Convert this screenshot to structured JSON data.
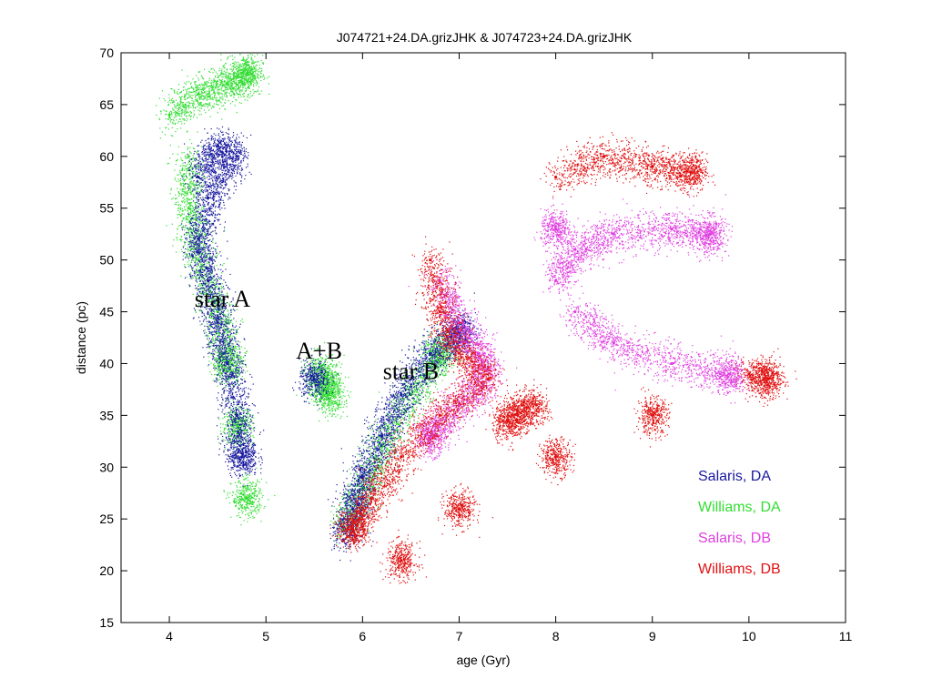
{
  "chart_data": {
    "type": "scatter",
    "title": "J074721+24.DA.grizJHK & J074723+24.DA.grizJHK",
    "xlabel": "age (Gyr)",
    "ylabel": "distance (pc)",
    "xlim": [
      3.5,
      11
    ],
    "ylim": [
      15,
      70
    ],
    "xticks": [
      "4",
      "5",
      "6",
      "7",
      "8",
      "9",
      "10",
      "11"
    ],
    "yticks": [
      "15",
      "20",
      "25",
      "30",
      "35",
      "40",
      "45",
      "50",
      "55",
      "60",
      "65",
      "70"
    ],
    "grid": false,
    "legend_position": "bottom-right",
    "legend": [
      {
        "label": "Salaris, DA",
        "color": "#1a1aa0"
      },
      {
        "label": "Williams, DA",
        "color": "#33dd33"
      },
      {
        "label": "Salaris, DB",
        "color": "#e040e0"
      },
      {
        "label": "Williams, DB",
        "color": "#e01010"
      }
    ],
    "annotations": [
      {
        "text": "star A",
        "x": 4.55,
        "y": 45.5
      },
      {
        "text": "A+B",
        "x": 5.55,
        "y": 40.5
      },
      {
        "text": "star B",
        "x": 6.5,
        "y": 38.5
      }
    ],
    "series": [
      {
        "name": "Salaris, DA",
        "color": "#1a1aa0",
        "points": [
          {
            "x": 4.3,
            "y": 58
          },
          {
            "x": 4.5,
            "y": 61
          },
          {
            "x": 4.7,
            "y": 60
          },
          {
            "x": 4.4,
            "y": 56
          },
          {
            "x": 4.3,
            "y": 52
          },
          {
            "x": 4.4,
            "y": 48
          },
          {
            "x": 4.5,
            "y": 44
          },
          {
            "x": 4.6,
            "y": 40
          },
          {
            "x": 4.7,
            "y": 35
          },
          {
            "x": 4.75,
            "y": 31
          },
          {
            "x": 5.5,
            "y": 38.5
          },
          {
            "x": 5.8,
            "y": 23
          },
          {
            "x": 5.9,
            "y": 26
          },
          {
            "x": 6.0,
            "y": 29
          },
          {
            "x": 6.2,
            "y": 33
          },
          {
            "x": 6.4,
            "y": 37
          },
          {
            "x": 6.7,
            "y": 41
          },
          {
            "x": 7.0,
            "y": 43
          }
        ]
      },
      {
        "name": "Williams, DA",
        "color": "#33dd33",
        "points": [
          {
            "x": 4.0,
            "y": 64
          },
          {
            "x": 4.3,
            "y": 66
          },
          {
            "x": 4.6,
            "y": 67
          },
          {
            "x": 4.8,
            "y": 68
          },
          {
            "x": 4.2,
            "y": 60
          },
          {
            "x": 4.2,
            "y": 55
          },
          {
            "x": 4.3,
            "y": 50
          },
          {
            "x": 4.5,
            "y": 45
          },
          {
            "x": 4.6,
            "y": 40
          },
          {
            "x": 4.7,
            "y": 34
          },
          {
            "x": 4.8,
            "y": 27
          },
          {
            "x": 5.6,
            "y": 38
          },
          {
            "x": 5.55,
            "y": 39.5
          },
          {
            "x": 5.65,
            "y": 37
          },
          {
            "x": 5.8,
            "y": 24
          },
          {
            "x": 6.0,
            "y": 28
          },
          {
            "x": 6.2,
            "y": 32
          },
          {
            "x": 6.5,
            "y": 37
          },
          {
            "x": 6.8,
            "y": 41
          }
        ]
      },
      {
        "name": "Salaris, DB",
        "color": "#e040e0",
        "points": [
          {
            "x": 6.8,
            "y": 48
          },
          {
            "x": 7.0,
            "y": 44
          },
          {
            "x": 7.2,
            "y": 41
          },
          {
            "x": 7.3,
            "y": 38.5
          },
          {
            "x": 7.0,
            "y": 36
          },
          {
            "x": 6.7,
            "y": 33
          },
          {
            "x": 8.0,
            "y": 48
          },
          {
            "x": 8.2,
            "y": 51
          },
          {
            "x": 8.6,
            "y": 52.5
          },
          {
            "x": 9.2,
            "y": 53
          },
          {
            "x": 9.6,
            "y": 52.5
          },
          {
            "x": 8.2,
            "y": 45
          },
          {
            "x": 8.6,
            "y": 42
          },
          {
            "x": 9.2,
            "y": 40
          },
          {
            "x": 9.8,
            "y": 39
          },
          {
            "x": 8.0,
            "y": 53
          }
        ]
      },
      {
        "name": "Williams, DB",
        "color": "#e01010",
        "points": [
          {
            "x": 6.7,
            "y": 50
          },
          {
            "x": 6.8,
            "y": 45
          },
          {
            "x": 7.0,
            "y": 41
          },
          {
            "x": 7.3,
            "y": 38.5
          },
          {
            "x": 6.8,
            "y": 35
          },
          {
            "x": 6.4,
            "y": 31
          },
          {
            "x": 6.1,
            "y": 27
          },
          {
            "x": 5.9,
            "y": 24
          },
          {
            "x": 7.6,
            "y": 35.5
          },
          {
            "x": 7.8,
            "y": 36
          },
          {
            "x": 7.5,
            "y": 34.5
          },
          {
            "x": 6.4,
            "y": 21
          },
          {
            "x": 7.0,
            "y": 26
          },
          {
            "x": 8.0,
            "y": 31
          },
          {
            "x": 9.0,
            "y": 35
          },
          {
            "x": 10.0,
            "y": 39
          },
          {
            "x": 10.2,
            "y": 38.5
          },
          {
            "x": 8.0,
            "y": 58
          },
          {
            "x": 8.5,
            "y": 60
          },
          {
            "x": 9.0,
            "y": 59
          },
          {
            "x": 9.4,
            "y": 58.5
          }
        ]
      }
    ]
  }
}
